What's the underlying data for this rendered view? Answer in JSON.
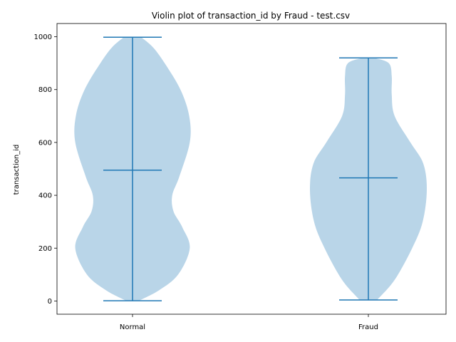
{
  "chart_data": {
    "type": "violin",
    "title": "Violin plot of transaction_id by Fraud - test.csv",
    "xlabel": "",
    "ylabel": "transaction_id",
    "categories": [
      "Normal",
      "Fraud"
    ],
    "ylim": [
      -50,
      1050
    ],
    "yticks": [
      0,
      200,
      400,
      600,
      800,
      1000
    ],
    "grid": false,
    "colors": {
      "body": "#b9d5e8",
      "line": "#1f77b4"
    },
    "violins": [
      {
        "name": "Normal",
        "min": 1,
        "max": 998,
        "median": 495,
        "density": [
          [
            0,
            0.1
          ],
          [
            40,
            0.45
          ],
          [
            100,
            0.78
          ],
          [
            200,
            0.98
          ],
          [
            280,
            0.85
          ],
          [
            340,
            0.7
          ],
          [
            400,
            0.68
          ],
          [
            470,
            0.8
          ],
          [
            600,
            0.98
          ],
          [
            700,
            0.97
          ],
          [
            800,
            0.82
          ],
          [
            900,
            0.55
          ],
          [
            960,
            0.35
          ],
          [
            998,
            0.15
          ]
        ]
      },
      {
        "name": "Fraud",
        "min": 4,
        "max": 920,
        "median": 466,
        "density": [
          [
            4,
            0.15
          ],
          [
            80,
            0.45
          ],
          [
            200,
            0.75
          ],
          [
            300,
            0.93
          ],
          [
            420,
            1.0
          ],
          [
            520,
            0.94
          ],
          [
            600,
            0.72
          ],
          [
            700,
            0.45
          ],
          [
            780,
            0.4
          ],
          [
            850,
            0.4
          ],
          [
            900,
            0.35
          ],
          [
            920,
            0.1
          ]
        ]
      }
    ]
  }
}
